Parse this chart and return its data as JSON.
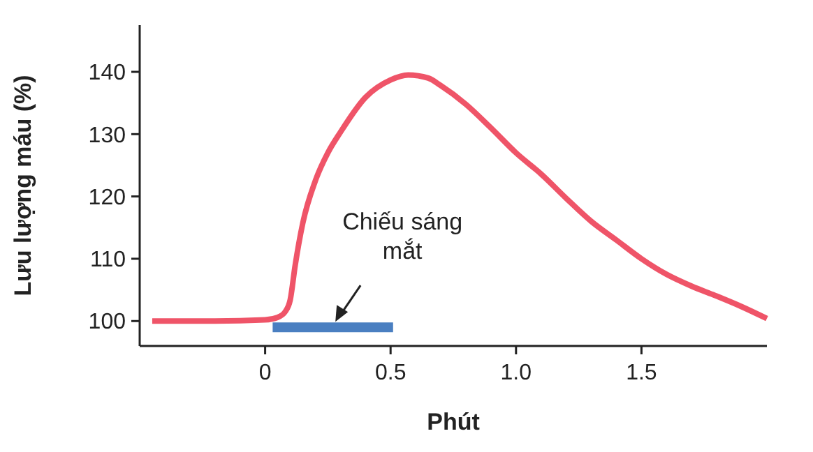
{
  "chart_data": {
    "type": "line",
    "xlabel": "Phút",
    "ylabel": "Lưu lượng máu (%)",
    "xlim": [
      -0.5,
      2.0
    ],
    "ylim": [
      96,
      147.5
    ],
    "xticks": [
      0,
      0.5,
      {
        "value": 1,
        "label": "1.0"
      },
      1.5
    ],
    "yticks": [
      100,
      110,
      120,
      130,
      140
    ],
    "grid": false,
    "marker": "none",
    "line_style": "solid",
    "series": [
      {
        "color": "#ef5468",
        "x": [
          -0.45,
          -0.2,
          0.0,
          0.05,
          0.08,
          0.1,
          0.12,
          0.15,
          0.2,
          0.25,
          0.3,
          0.4,
          0.5,
          0.57,
          0.65,
          0.7,
          0.8,
          0.9,
          1.0,
          1.1,
          1.2,
          1.3,
          1.4,
          1.5,
          1.6,
          1.7,
          1.8,
          1.9,
          2.0
        ],
        "values": [
          100,
          100,
          100.2,
          100.6,
          101.5,
          103.4,
          109,
          115.7,
          122.5,
          127,
          130.3,
          135.9,
          138.7,
          139.5,
          139,
          137.8,
          134.8,
          131,
          127,
          123.6,
          119.7,
          116,
          113,
          110,
          107.5,
          105.6,
          104,
          102.3,
          100.4
        ]
      },
      {
        "color": "#4a7fc1",
        "x": [
          0.03,
          0.51
        ],
        "values": [
          99,
          99
        ]
      }
    ],
    "annotations": [
      {
        "text": "Chiếu sáng\nmắt",
        "x": 0.28,
        "y": 99
      }
    ]
  }
}
